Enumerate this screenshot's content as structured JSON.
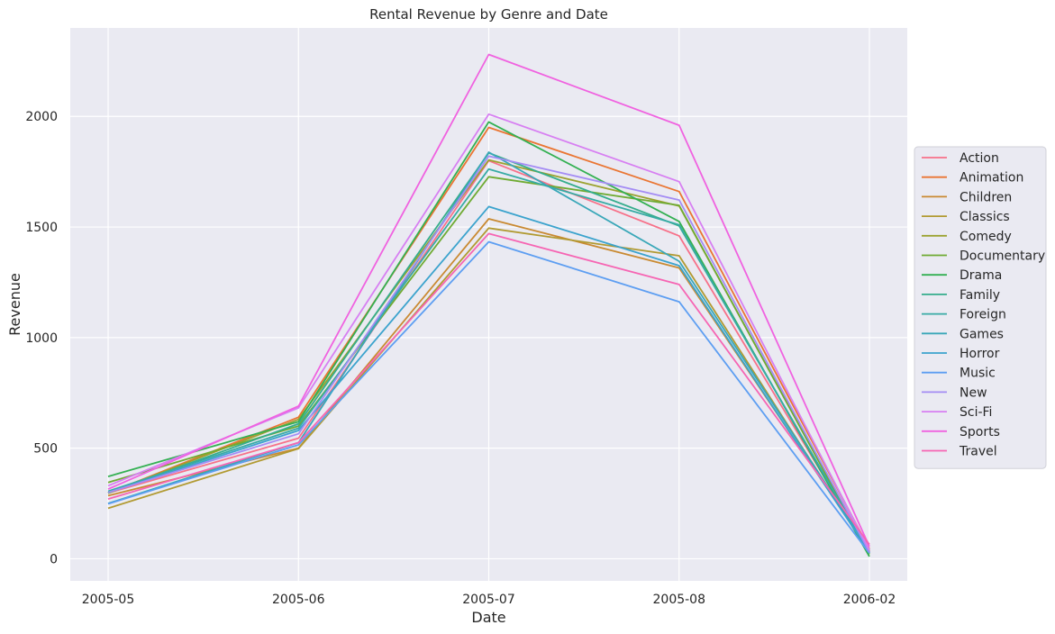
{
  "chart_data": {
    "type": "line",
    "title": "Rental Revenue by Genre and Date",
    "xlabel": "Date",
    "ylabel": "Revenue",
    "categories": [
      "2005-05",
      "2005-06",
      "2005-07",
      "2005-08",
      "2006-02"
    ],
    "ylim": [
      -100,
      2400
    ],
    "yticks": [
      0,
      500,
      1000,
      1500,
      2000
    ],
    "grid": true,
    "legend_position": "right",
    "background_color": "#eaeaf2",
    "grid_color": "#ffffff",
    "series": [
      {
        "name": "Action",
        "color": "#f77189",
        "values": [
          297,
          545,
          1800,
          1460,
          30
        ]
      },
      {
        "name": "Animation",
        "color": "#ea7532",
        "values": [
          297,
          640,
          1950,
          1660,
          45
        ]
      },
      {
        "name": "Children",
        "color": "#c98a32",
        "values": [
          285,
          500,
          1537,
          1315,
          35
        ]
      },
      {
        "name": "Classics",
        "color": "#b19a32",
        "values": [
          228,
          498,
          1495,
          1370,
          30
        ]
      },
      {
        "name": "Comedy",
        "color": "#9ba230",
        "values": [
          296,
          630,
          1803,
          1595,
          25
        ]
      },
      {
        "name": "Documentary",
        "color": "#6fab33",
        "values": [
          345,
          600,
          1727,
          1598,
          20
        ]
      },
      {
        "name": "Drama",
        "color": "#33b052",
        "values": [
          372,
          620,
          1975,
          1525,
          10
        ]
      },
      {
        "name": "Family",
        "color": "#35ad8c",
        "values": [
          298,
          610,
          1835,
          1505,
          30
        ]
      },
      {
        "name": "Foreign",
        "color": "#37aba4",
        "values": [
          305,
          590,
          1762,
          1510,
          25
        ]
      },
      {
        "name": "Games",
        "color": "#39a7b8",
        "values": [
          250,
          525,
          1838,
          1345,
          40
        ]
      },
      {
        "name": "Horror",
        "color": "#3ba3cd",
        "values": [
          300,
          580,
          1592,
          1325,
          30
        ]
      },
      {
        "name": "Music",
        "color": "#5d9ef2",
        "values": [
          248,
          515,
          1433,
          1162,
          25
        ]
      },
      {
        "name": "New",
        "color": "#a48cf4",
        "values": [
          300,
          565,
          1820,
          1622,
          30
        ]
      },
      {
        "name": "Sci-Fi",
        "color": "#d77ff2",
        "values": [
          330,
          682,
          2010,
          1705,
          40
        ]
      },
      {
        "name": "Sports",
        "color": "#f062e0",
        "values": [
          315,
          690,
          2280,
          1960,
          55
        ]
      },
      {
        "name": "Travel",
        "color": "#f665b3",
        "values": [
          270,
          525,
          1470,
          1240,
          65
        ]
      }
    ]
  }
}
